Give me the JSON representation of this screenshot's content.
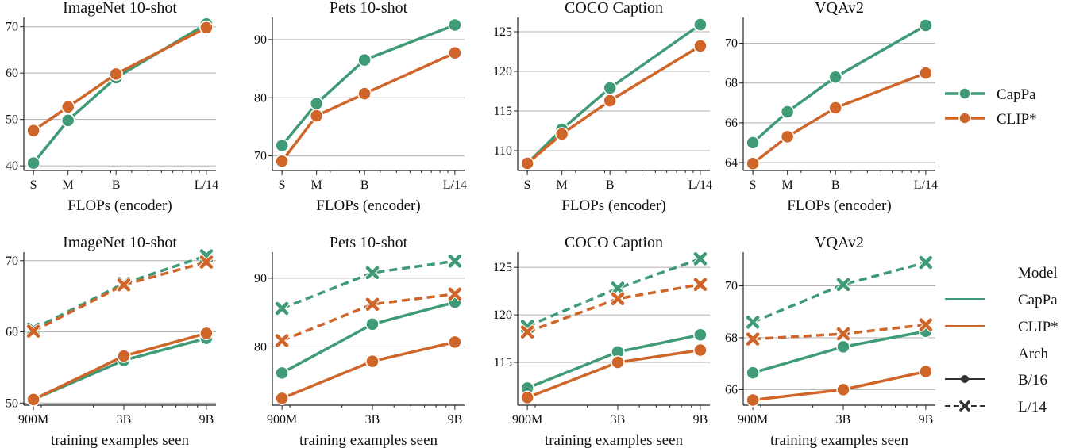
{
  "colors": {
    "CapPa": "#3f9a76",
    "CLIP*": "#cf6529",
    "grid": "#b0b0b0"
  },
  "legend_top": {
    "entries": [
      "CapPa",
      "CLIP*"
    ],
    "placement": "right"
  },
  "legend_bottom": {
    "model_title": "Model",
    "models": [
      "CapPa",
      "CLIP*"
    ],
    "arch_title": "Arch",
    "archs": [
      "B/16",
      "L/14"
    ],
    "placement": "right"
  },
  "chart_data": [
    {
      "type": "line",
      "title": "ImageNet 10-shot",
      "xlabel": "FLOPs (encoder)",
      "ylabel": "",
      "categories": [
        "S",
        "M",
        "B",
        "L/14"
      ],
      "x_scale": "log",
      "ylim": [
        39,
        72
      ],
      "yticks": [
        40,
        50,
        60,
        70
      ],
      "grid": "y",
      "series": [
        {
          "name": "CapPa",
          "values": [
            40.6,
            49.8,
            59.0,
            70.6
          ]
        },
        {
          "name": "CLIP*",
          "values": [
            47.6,
            52.7,
            59.8,
            69.8
          ]
        }
      ]
    },
    {
      "type": "line",
      "title": "Pets 10-shot",
      "xlabel": "FLOPs (encoder)",
      "ylabel": "",
      "categories": [
        "S",
        "M",
        "B",
        "L/14"
      ],
      "x_scale": "log",
      "ylim": [
        67.5,
        93.8
      ],
      "yticks": [
        70,
        80,
        90
      ],
      "grid": "y",
      "series": [
        {
          "name": "CapPa",
          "values": [
            71.8,
            79.0,
            86.5,
            92.5
          ]
        },
        {
          "name": "CLIP*",
          "values": [
            69.1,
            76.9,
            80.7,
            87.7
          ]
        }
      ]
    },
    {
      "type": "line",
      "title": "COCO Caption",
      "xlabel": "FLOPs (encoder)",
      "ylabel": "",
      "categories": [
        "S",
        "M",
        "B",
        "L/14"
      ],
      "x_scale": "log",
      "ylim": [
        107.5,
        126.8
      ],
      "yticks": [
        110,
        115,
        120,
        125
      ],
      "grid": "y",
      "series": [
        {
          "name": "CapPa",
          "values": [
            108.4,
            112.7,
            117.9,
            125.9
          ]
        },
        {
          "name": "CLIP*",
          "values": [
            108.4,
            112.1,
            116.3,
            123.2
          ]
        }
      ]
    },
    {
      "type": "line",
      "title": "VQAv2",
      "xlabel": "FLOPs (encoder)",
      "ylabel": "",
      "categories": [
        "S",
        "M",
        "B",
        "L/14"
      ],
      "x_scale": "log",
      "ylim": [
        63.6,
        71.3
      ],
      "yticks": [
        64,
        66,
        68,
        70
      ],
      "grid": "y",
      "series": [
        {
          "name": "CapPa",
          "values": [
            65.0,
            66.55,
            68.3,
            70.9
          ]
        },
        {
          "name": "CLIP*",
          "values": [
            63.95,
            65.3,
            66.75,
            68.5
          ]
        }
      ]
    },
    {
      "type": "line",
      "title": "ImageNet 10-shot",
      "xlabel": "training examples seen",
      "ylabel": "",
      "x": [
        900000000,
        3000000000,
        9000000000
      ],
      "xticklabels": [
        "900M",
        "3B",
        "9B"
      ],
      "x_scale": "log",
      "ylim": [
        49.7,
        71.2
      ],
      "yticks": [
        50,
        60,
        70
      ],
      "grid": "y",
      "series": [
        {
          "name": "CapPa",
          "arch": "B/16",
          "values": [
            50.5,
            56.0,
            59.1
          ]
        },
        {
          "name": "CLIP*",
          "arch": "B/16",
          "values": [
            50.5,
            56.6,
            59.8
          ]
        },
        {
          "name": "CapPa",
          "arch": "L/14",
          "values": [
            60.4,
            66.8,
            70.7
          ]
        },
        {
          "name": "CLIP*",
          "arch": "L/14",
          "values": [
            60.1,
            66.6,
            69.8
          ]
        }
      ]
    },
    {
      "type": "line",
      "title": "Pets 10-shot",
      "xlabel": "training examples seen",
      "ylabel": "",
      "x": [
        900000000,
        3000000000,
        9000000000
      ],
      "xticklabels": [
        "900M",
        "3B",
        "9B"
      ],
      "x_scale": "log",
      "ylim": [
        71.5,
        93.8
      ],
      "yticks": [
        80,
        90
      ],
      "grid": "y",
      "series": [
        {
          "name": "CapPa",
          "arch": "B/16",
          "values": [
            76.2,
            83.3,
            86.5
          ]
        },
        {
          "name": "CLIP*",
          "arch": "B/16",
          "values": [
            72.5,
            77.9,
            80.7
          ]
        },
        {
          "name": "CapPa",
          "arch": "L/14",
          "values": [
            85.6,
            90.8,
            92.5
          ]
        },
        {
          "name": "CLIP*",
          "arch": "L/14",
          "values": [
            80.9,
            86.2,
            87.7
          ]
        }
      ]
    },
    {
      "type": "line",
      "title": "COCO Caption",
      "xlabel": "training examples seen",
      "ylabel": "",
      "x": [
        900000000,
        3000000000,
        9000000000
      ],
      "xticklabels": [
        "900M",
        "3B",
        "9B"
      ],
      "x_scale": "log",
      "ylim": [
        110.5,
        126.6
      ],
      "yticks": [
        115,
        120,
        125
      ],
      "grid": "y",
      "series": [
        {
          "name": "CapPa",
          "arch": "B/16",
          "values": [
            112.3,
            116.1,
            117.9
          ]
        },
        {
          "name": "CLIP*",
          "arch": "B/16",
          "values": [
            111.3,
            115.0,
            116.3
          ]
        },
        {
          "name": "CapPa",
          "arch": "L/14",
          "values": [
            118.8,
            122.8,
            125.9
          ]
        },
        {
          "name": "CLIP*",
          "arch": "L/14",
          "values": [
            118.2,
            121.7,
            123.2
          ]
        }
      ]
    },
    {
      "type": "line",
      "title": "VQAv2",
      "xlabel": "training examples seen",
      "ylabel": "",
      "x": [
        900000000,
        3000000000,
        9000000000
      ],
      "xticklabels": [
        "900M",
        "3B",
        "9B"
      ],
      "x_scale": "log",
      "ylim": [
        65.4,
        71.3
      ],
      "yticks": [
        66,
        68,
        70
      ],
      "grid": "y",
      "series": [
        {
          "name": "CapPa",
          "arch": "B/16",
          "values": [
            66.65,
            67.65,
            68.25
          ]
        },
        {
          "name": "CLIP*",
          "arch": "B/16",
          "values": [
            65.6,
            66.0,
            66.7
          ]
        },
        {
          "name": "CapPa",
          "arch": "L/14",
          "values": [
            68.6,
            70.05,
            70.9
          ]
        },
        {
          "name": "CLIP*",
          "arch": "L/14",
          "values": [
            67.95,
            68.15,
            68.5
          ]
        }
      ]
    }
  ]
}
